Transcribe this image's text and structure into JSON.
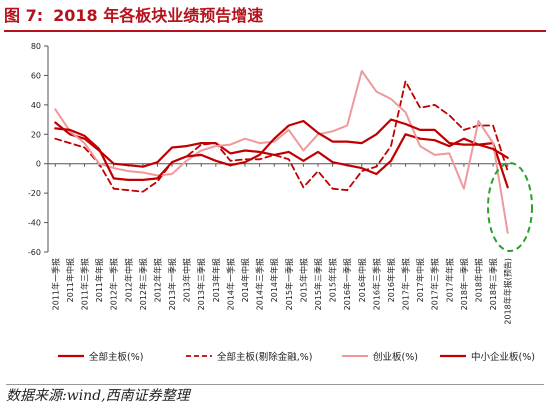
{
  "header": {
    "figure_no": "图 7:",
    "title": "2018 年各板块业绩预告增速"
  },
  "footer": {
    "source": "数据来源:wind,西南证券整理"
  },
  "chart_data": {
    "type": "line",
    "ylim": [
      -60,
      80
    ],
    "yticks": [
      -60,
      -40,
      -20,
      0,
      20,
      40,
      60,
      80
    ],
    "grid": false,
    "legend_position": "bottom",
    "categories": [
      "2011年一季报",
      "2011年中报",
      "2011年三季报",
      "2011年年报",
      "2012年一季报",
      "2012年中报",
      "2012年三季报",
      "2012年年报",
      "2013年一季报",
      "2013年中报",
      "2013年三季报",
      "2013年年报",
      "2014年一季报",
      "2014年中报",
      "2014年三季报",
      "2014年年报",
      "2015年一季报",
      "2015年中报",
      "2015年三季报",
      "2015年年报",
      "2016年一季报",
      "2016年中报",
      "2016年三季报",
      "2016年年报",
      "2017年一季报",
      "2017年中报",
      "2017年三季报",
      "2017年年报",
      "2018年一季报",
      "2018年中报",
      "2018年三季报",
      "2018年年报(预告)"
    ],
    "series": [
      {
        "name": "全部主板(%)",
        "color": "#c00000",
        "dash": "solid",
        "width": 2.2,
        "values": [
          28,
          20,
          17,
          9,
          0,
          -1,
          -2,
          1,
          11,
          12,
          14,
          14,
          7,
          9,
          8,
          6,
          8,
          2,
          8,
          1,
          -1,
          -3,
          -7,
          2,
          20,
          17,
          16,
          12,
          17,
          13,
          14,
          -16
        ]
      },
      {
        "name": "全部主板(剔除金融,%)",
        "color": "#c00000",
        "dash": "dashed",
        "width": 1.8,
        "values": [
          17,
          14,
          11,
          0,
          -17,
          -18,
          -19,
          -12,
          1,
          5,
          13,
          14,
          2,
          3,
          3,
          6,
          3,
          -16,
          -5,
          -17,
          -18,
          -5,
          -2,
          12,
          56,
          38,
          40,
          33,
          23,
          26,
          26,
          -5
        ]
      },
      {
        "name": "创业板(%)",
        "color": "#f0999b",
        "dash": "solid",
        "width": 2,
        "values": [
          37,
          22,
          14,
          0,
          -3,
          -5,
          -6,
          -8,
          -7,
          2,
          9,
          12,
          13,
          17,
          14,
          15,
          23,
          9,
          20,
          22,
          26,
          63,
          49,
          44,
          35,
          12,
          6,
          7,
          -17,
          29,
          14,
          -47
        ]
      },
      {
        "name": "中小企业板(%)",
        "color": "#c00000",
        "dash": "solid",
        "width": 2.2,
        "values": [
          24,
          23,
          19,
          10,
          -10,
          -11,
          -11,
          -10,
          1,
          5,
          6,
          2,
          -1,
          1,
          6,
          17,
          26,
          29,
          21,
          15,
          15,
          14,
          20,
          30,
          27,
          23,
          23,
          14,
          13,
          13,
          10,
          4
        ]
      }
    ]
  }
}
